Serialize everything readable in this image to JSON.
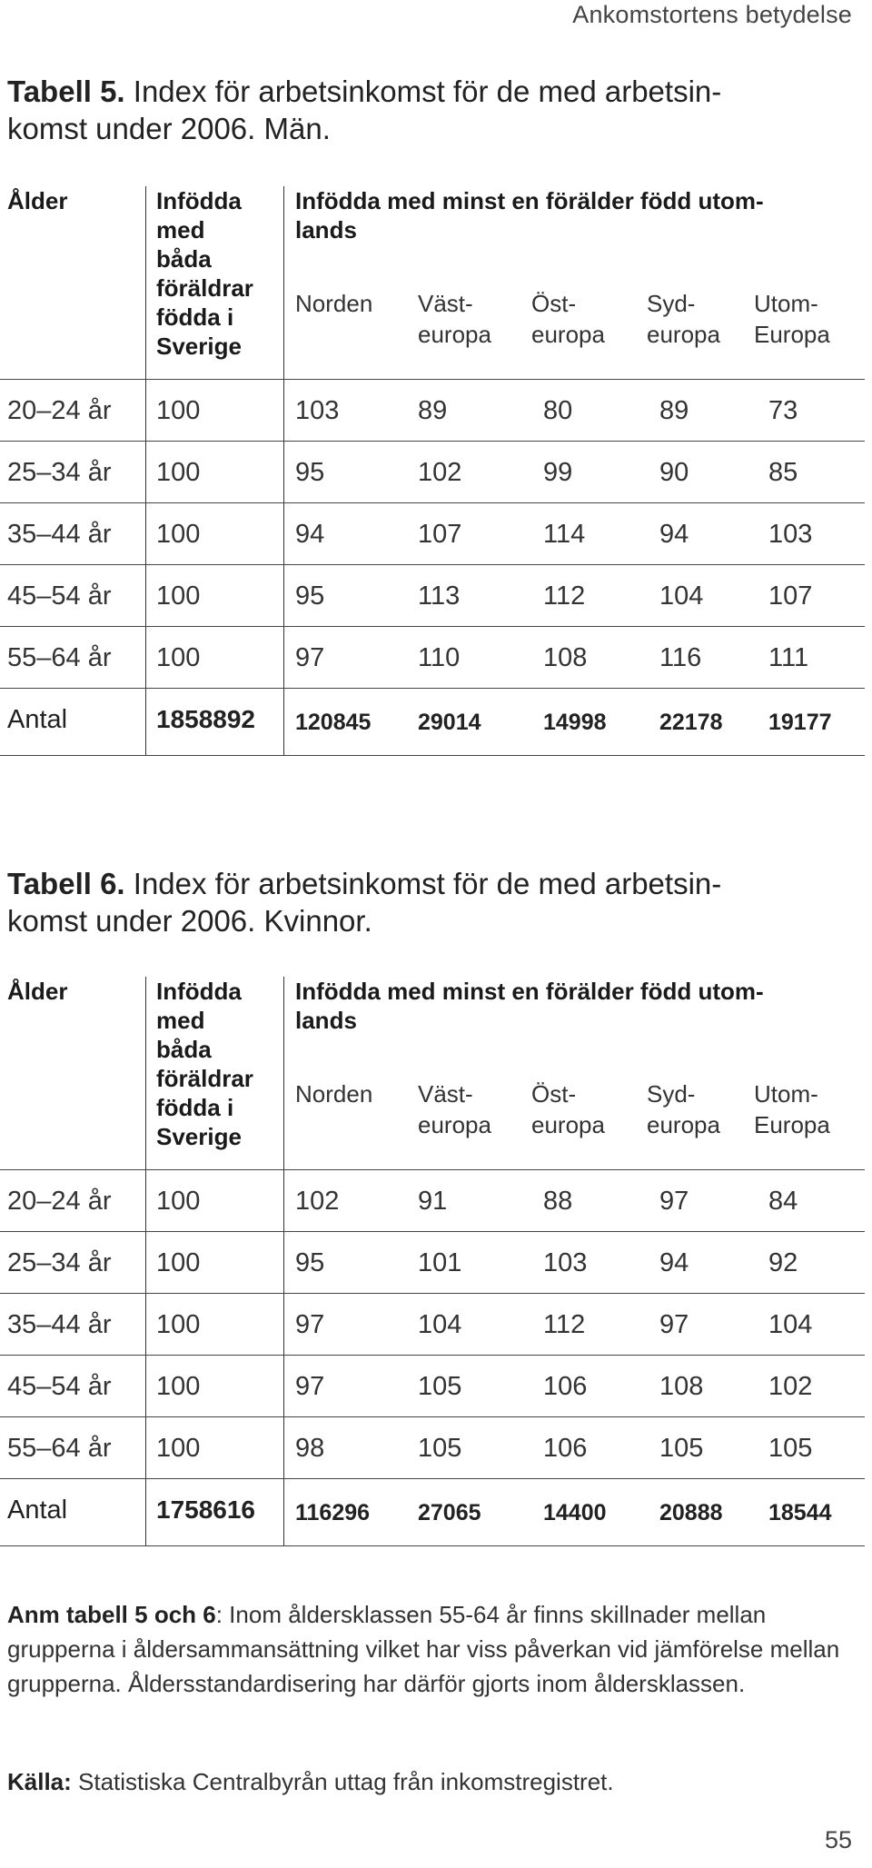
{
  "running_head": "Ankomstortens betydelse",
  "page_number": "55",
  "header": {
    "age": "Ålder",
    "native_both": [
      "Infödda",
      "med",
      "båda",
      "föräldrar",
      "födda i",
      "Sverige"
    ],
    "group_label": [
      "Infödda med minst en förälder född utom-",
      "lands"
    ],
    "regions": [
      [
        "Norden",
        ""
      ],
      [
        "Väst-",
        "europa"
      ],
      [
        "Öst-",
        "europa"
      ],
      [
        "Syd-",
        "europa"
      ],
      [
        "Utom-",
        "Europa"
      ]
    ]
  },
  "tables": [
    {
      "title_bold": "Tabell 5.",
      "title_rest": " Index för arbetsinkomst för de med arbetsin-",
      "title_line2": "komst under 2006. Män.",
      "rows": [
        {
          "age": "20–24 år",
          "values": [
            "100",
            "103",
            "89",
            "80",
            "89",
            "73"
          ]
        },
        {
          "age": "25–34 år",
          "values": [
            "100",
            "95",
            "102",
            "99",
            "90",
            "85"
          ]
        },
        {
          "age": "35–44 år",
          "values": [
            "100",
            "94",
            "107",
            "114",
            "94",
            "103"
          ]
        },
        {
          "age": "45–54 år",
          "values": [
            "100",
            "95",
            "113",
            "112",
            "104",
            "107"
          ]
        },
        {
          "age": "55–64 år",
          "values": [
            "100",
            "97",
            "110",
            "108",
            "116",
            "111"
          ]
        }
      ],
      "total": {
        "label": "Antal",
        "values": [
          "1858892",
          "120845",
          "29014",
          "14998",
          "22178",
          "19177"
        ]
      }
    },
    {
      "title_bold": "Tabell 6.",
      "title_rest": " Index för arbetsinkomst för de med arbetsin-",
      "title_line2": "komst under 2006. Kvinnor.",
      "rows": [
        {
          "age": "20–24 år",
          "values": [
            "100",
            "102",
            "91",
            "88",
            "97",
            "84"
          ]
        },
        {
          "age": "25–34 år",
          "values": [
            "100",
            "95",
            "101",
            "103",
            "94",
            "92"
          ]
        },
        {
          "age": "35–44 år",
          "values": [
            "100",
            "97",
            "104",
            "112",
            "97",
            "104"
          ]
        },
        {
          "age": "45–54 år",
          "values": [
            "100",
            "97",
            "105",
            "106",
            "108",
            "102"
          ]
        },
        {
          "age": "55–64 år",
          "values": [
            "100",
            "98",
            "105",
            "106",
            "105",
            "105"
          ]
        }
      ],
      "total": {
        "label": "Antal",
        "values": [
          "1758616",
          "116296",
          "27065",
          "14400",
          "20888",
          "18544"
        ]
      }
    }
  ],
  "note": {
    "label": "Anm tabell 5 och 6",
    "text": ": Inom åldersklassen 55-64 år finns skillnader mellan grupperna i åldersammansättning vilket har viss påverkan vid jämförelse mellan grupperna. Åldersstandardisering har därför gjorts inom åldersklassen."
  },
  "source": {
    "label": "Källa:",
    "text": " Statistiska Centralbyrån uttag från inkomstregistret."
  }
}
